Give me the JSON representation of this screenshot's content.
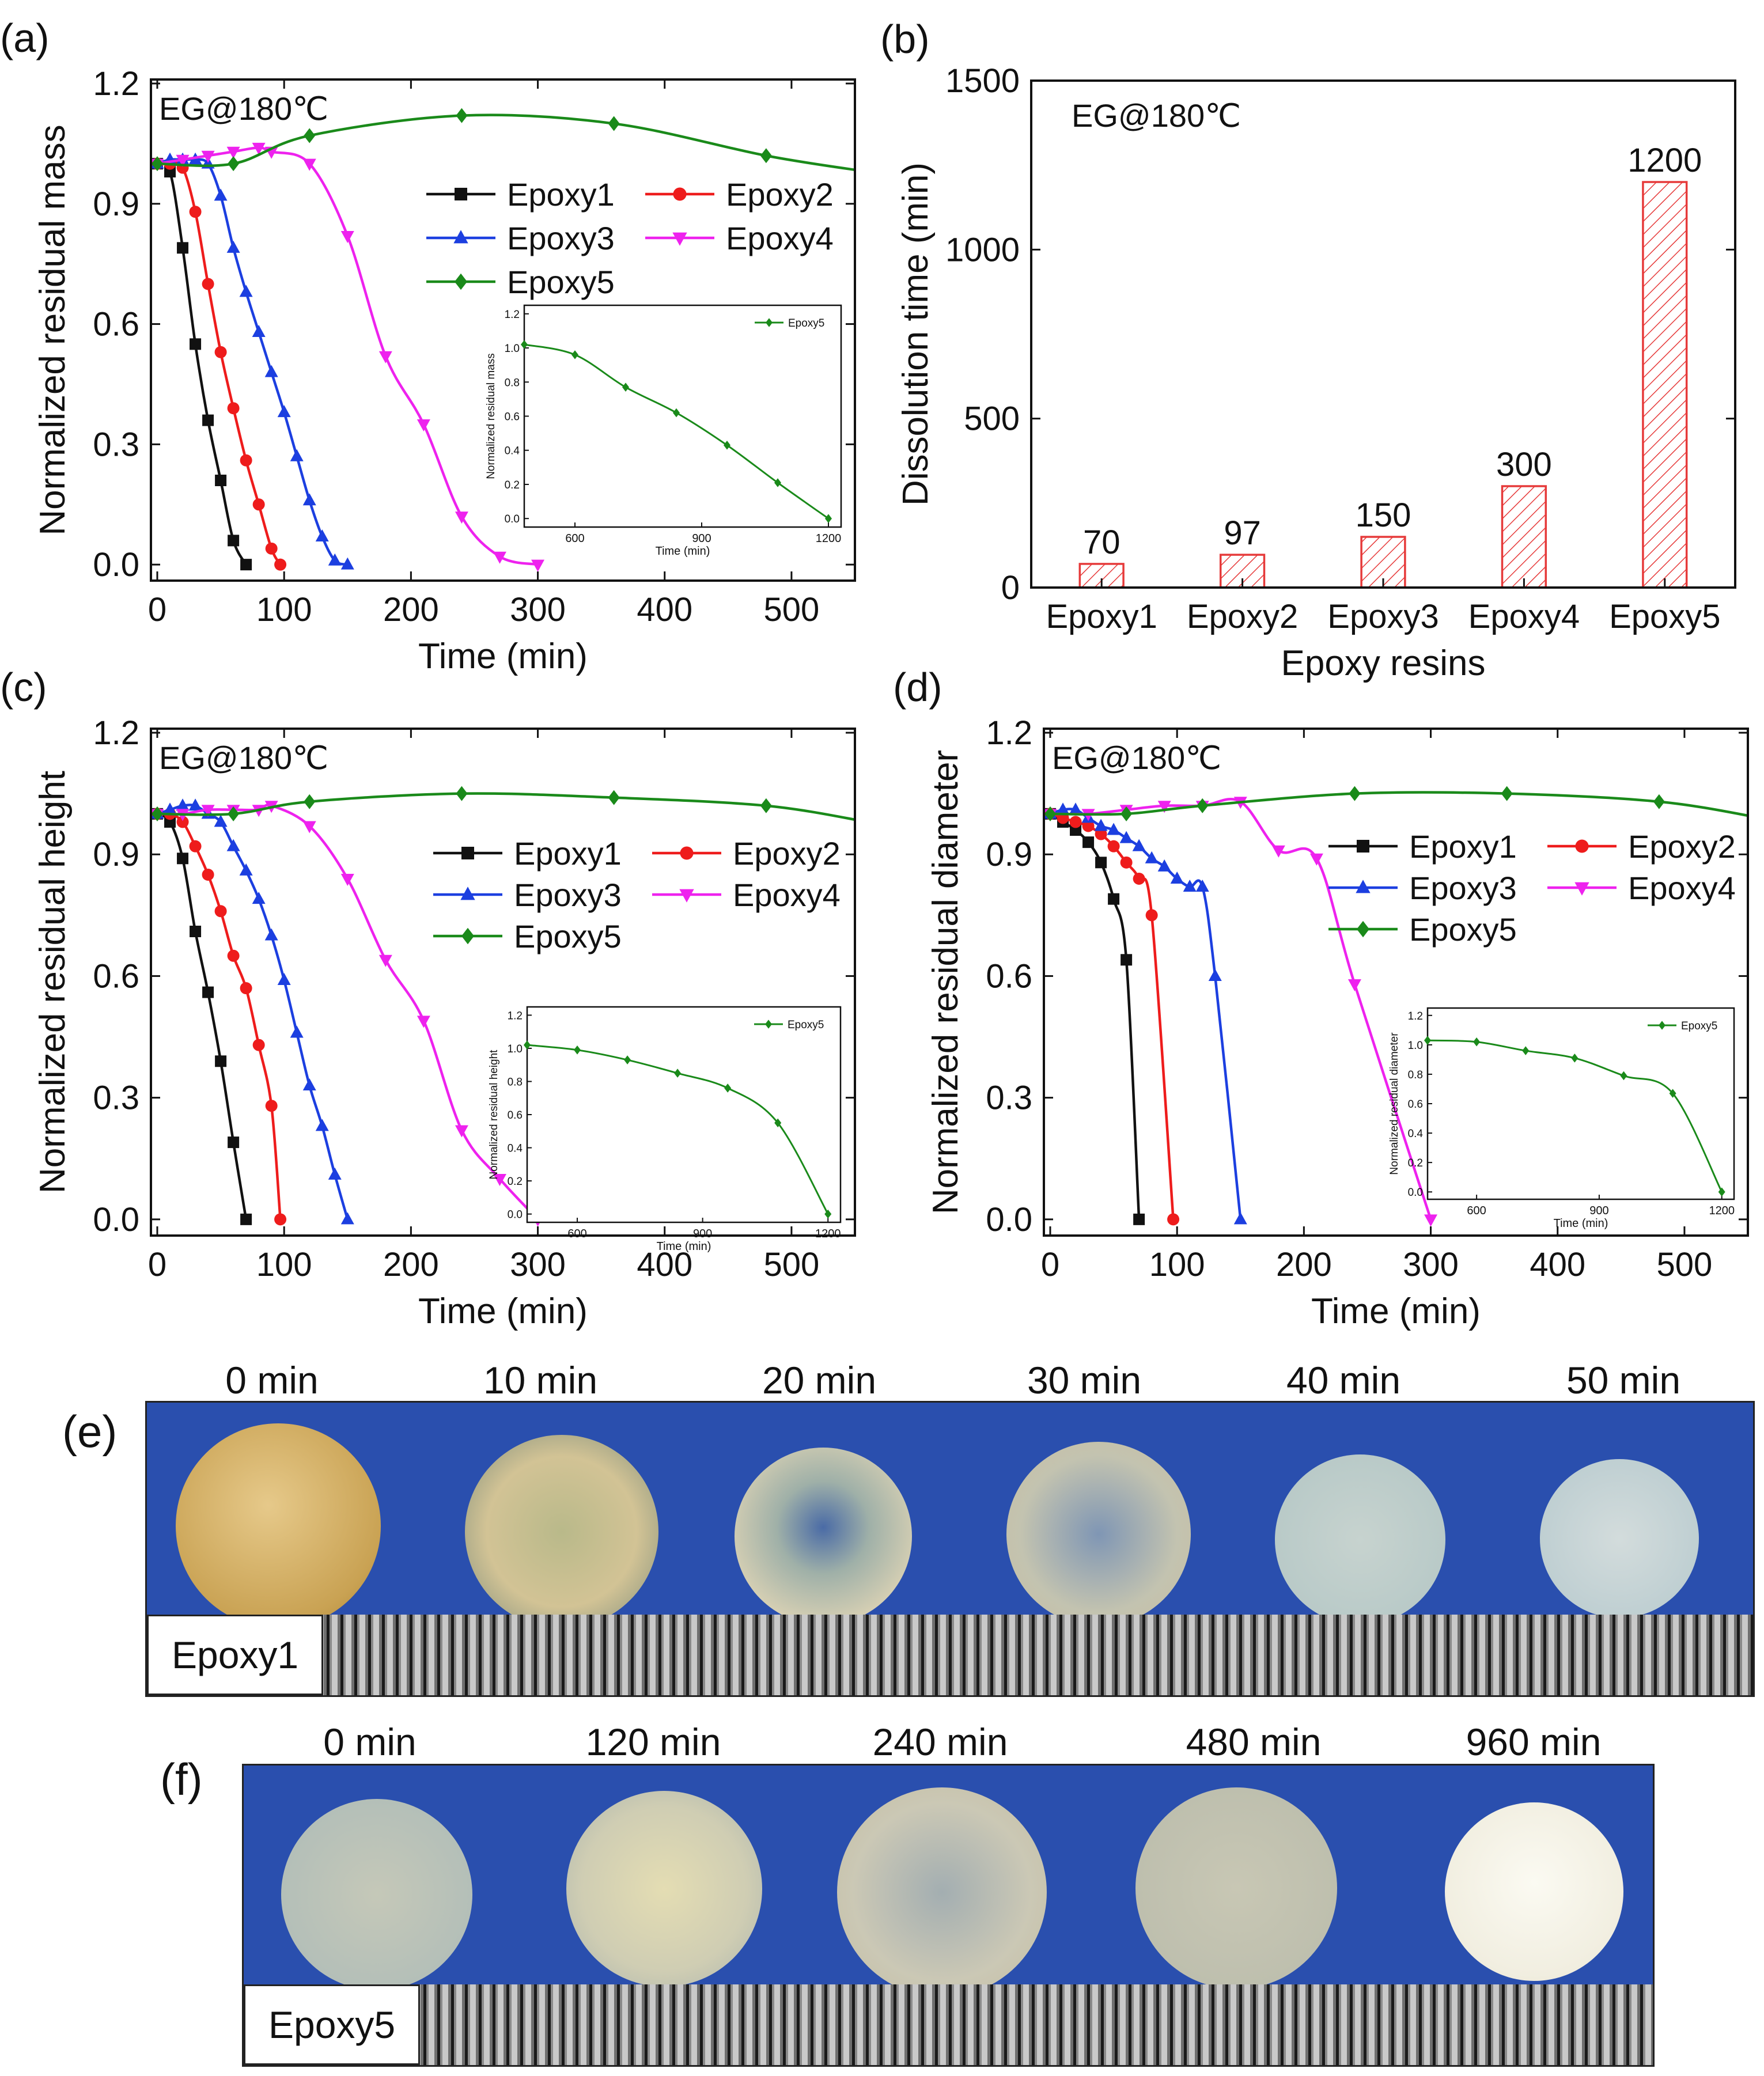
{
  "colors": {
    "Epoxy1": "#111111",
    "Epoxy2": "#ee1c1c",
    "Epoxy3": "#1c3fe0",
    "Epoxy4": "#ee22ee",
    "Epoxy5": "#1a8a1a",
    "bar_edge": "#e63a3a",
    "photo_bg": "#2a4fae"
  },
  "chart_data": [
    {
      "id": "a",
      "panel_label": "(a)",
      "type": "line",
      "title": "",
      "annotation": "EG@180℃",
      "xlabel": "Time (min)",
      "ylabel": "Normalized residual mass",
      "xlim": [
        -5,
        550
      ],
      "ylim": [
        -0.04,
        1.21
      ],
      "xticks": [
        0,
        100,
        200,
        300,
        400,
        500
      ],
      "yticks": [
        0.0,
        0.3,
        0.6,
        0.9,
        1.2
      ],
      "ytick_labels": [
        "0.0",
        "0.3",
        "0.6",
        "0.9",
        "1.2"
      ],
      "legend": [
        "Epoxy1",
        "Epoxy2",
        "Epoxy3",
        "Epoxy4",
        "Epoxy5"
      ],
      "series": [
        {
          "name": "Epoxy1",
          "marker": "square",
          "x": [
            0,
            10,
            20,
            30,
            40,
            50,
            60,
            70
          ],
          "y": [
            1.0,
            0.98,
            0.79,
            0.55,
            0.36,
            0.21,
            0.06,
            0.0
          ]
        },
        {
          "name": "Epoxy2",
          "marker": "circle",
          "x": [
            0,
            10,
            20,
            30,
            40,
            50,
            60,
            70,
            80,
            90,
            97
          ],
          "y": [
            1.0,
            1.0,
            0.99,
            0.88,
            0.7,
            0.53,
            0.39,
            0.26,
            0.15,
            0.04,
            0.0
          ]
        },
        {
          "name": "Epoxy3",
          "marker": "triangle-up",
          "x": [
            0,
            10,
            20,
            30,
            40,
            50,
            60,
            70,
            80,
            90,
            100,
            110,
            120,
            130,
            140,
            150
          ],
          "y": [
            1.0,
            1.01,
            1.01,
            1.01,
            1.0,
            0.92,
            0.79,
            0.68,
            0.58,
            0.48,
            0.38,
            0.27,
            0.16,
            0.07,
            0.01,
            0.0
          ]
        },
        {
          "name": "Epoxy4",
          "marker": "triangle-down",
          "x": [
            0,
            20,
            40,
            60,
            80,
            90,
            120,
            150,
            180,
            210,
            240,
            270,
            300
          ],
          "y": [
            1.0,
            1.01,
            1.02,
            1.03,
            1.04,
            1.03,
            1.0,
            0.82,
            0.52,
            0.35,
            0.12,
            0.02,
            0.0
          ]
        },
        {
          "name": "Epoxy5",
          "marker": "diamond",
          "x": [
            0,
            60,
            120,
            240,
            360,
            480
          ],
          "y": [
            1.0,
            1.0,
            1.07,
            1.12,
            1.1,
            1.02
          ]
        }
      ],
      "inset": {
        "xlabel": "Time (min)",
        "ylabel": "Normalized residual mass",
        "xlim": [
          480,
          1230
        ],
        "ylim": [
          -0.05,
          1.25
        ],
        "xticks": [
          600,
          900,
          1200
        ],
        "yticks": [
          0.0,
          0.2,
          0.4,
          0.6,
          0.8,
          1.0,
          1.2
        ],
        "ytick_labels": [
          "0.0",
          "0.2",
          "0.4",
          "0.6",
          "0.8",
          "1.0",
          "1.2"
        ],
        "legend": [
          "Epoxy5"
        ],
        "series": [
          {
            "name": "Epoxy5",
            "marker": "diamond",
            "x": [
              480,
              600,
              720,
              840,
              960,
              1080,
              1200
            ],
            "y": [
              1.02,
              0.96,
              0.77,
              0.62,
              0.43,
              0.21,
              0.0
            ]
          }
        ]
      }
    },
    {
      "id": "b",
      "panel_label": "(b)",
      "type": "bar",
      "title": "",
      "annotation": "EG@180℃",
      "xlabel": "Epoxy resins",
      "ylabel": "Dissolution time (min)",
      "categories": [
        "Epoxy1",
        "Epoxy2",
        "Epoxy3",
        "Epoxy4",
        "Epoxy5"
      ],
      "values": [
        70,
        97,
        150,
        300,
        1200
      ],
      "value_labels": [
        "70",
        "97",
        "150",
        "300",
        "1200"
      ],
      "ylim": [
        0,
        1500
      ],
      "yticks": [
        0,
        500,
        1000,
        1500
      ],
      "ytick_labels": [
        "0",
        "500",
        "1000",
        "1500"
      ]
    },
    {
      "id": "c",
      "panel_label": "(c)",
      "type": "line",
      "title": "",
      "annotation": "EG@180℃",
      "xlabel": "Time (min)",
      "ylabel": "Normalized residual height",
      "xlim": [
        -5,
        550
      ],
      "ylim": [
        -0.04,
        1.21
      ],
      "xticks": [
        0,
        100,
        200,
        300,
        400,
        500
      ],
      "yticks": [
        0.0,
        0.3,
        0.6,
        0.9,
        1.2
      ],
      "ytick_labels": [
        "0.0",
        "0.3",
        "0.6",
        "0.9",
        "1.2"
      ],
      "legend": [
        "Epoxy1",
        "Epoxy2",
        "Epoxy3",
        "Epoxy4",
        "Epoxy5"
      ],
      "series": [
        {
          "name": "Epoxy1",
          "marker": "square",
          "x": [
            0,
            10,
            20,
            30,
            40,
            50,
            60,
            70
          ],
          "y": [
            1.0,
            0.98,
            0.89,
            0.71,
            0.56,
            0.39,
            0.19,
            0.0
          ]
        },
        {
          "name": "Epoxy2",
          "marker": "circle",
          "x": [
            0,
            10,
            20,
            30,
            40,
            50,
            60,
            70,
            80,
            90,
            97
          ],
          "y": [
            1.0,
            1.0,
            0.98,
            0.92,
            0.85,
            0.76,
            0.65,
            0.57,
            0.43,
            0.28,
            0.0
          ]
        },
        {
          "name": "Epoxy3",
          "marker": "triangle-up",
          "x": [
            0,
            10,
            20,
            30,
            40,
            50,
            60,
            70,
            80,
            90,
            100,
            110,
            120,
            130,
            140,
            150
          ],
          "y": [
            1.0,
            1.01,
            1.02,
            1.02,
            1.0,
            0.98,
            0.92,
            0.86,
            0.79,
            0.7,
            0.59,
            0.46,
            0.33,
            0.23,
            0.11,
            0.0
          ]
        },
        {
          "name": "Epoxy4",
          "marker": "triangle-down",
          "x": [
            0,
            20,
            40,
            60,
            80,
            90,
            120,
            150,
            180,
            210,
            240,
            270,
            300
          ],
          "y": [
            1.0,
            1.0,
            1.01,
            1.01,
            1.01,
            1.02,
            0.97,
            0.84,
            0.64,
            0.49,
            0.22,
            0.1,
            0.0
          ]
        },
        {
          "name": "Epoxy5",
          "marker": "diamond",
          "x": [
            0,
            60,
            120,
            240,
            360,
            480
          ],
          "y": [
            1.0,
            1.0,
            1.03,
            1.05,
            1.04,
            1.02
          ]
        }
      ],
      "inset": {
        "xlabel": "Time (min)",
        "ylabel": "Normalized residual height",
        "xlim": [
          480,
          1230
        ],
        "ylim": [
          -0.05,
          1.25
        ],
        "xticks": [
          600,
          900,
          1200
        ],
        "yticks": [
          0.0,
          0.2,
          0.4,
          0.6,
          0.8,
          1.0,
          1.2
        ],
        "ytick_labels": [
          "0.0",
          "0.2",
          "0.4",
          "0.6",
          "0.8",
          "1.0",
          "1.2"
        ],
        "legend": [
          "Epoxy5"
        ],
        "series": [
          {
            "name": "Epoxy5",
            "marker": "diamond",
            "x": [
              480,
              600,
              720,
              840,
              960,
              1080,
              1200
            ],
            "y": [
              1.02,
              0.99,
              0.93,
              0.85,
              0.76,
              0.55,
              0.0
            ]
          }
        ]
      }
    },
    {
      "id": "d",
      "panel_label": "(d)",
      "type": "line",
      "title": "",
      "annotation": "EG@180℃",
      "xlabel": "Time (min)",
      "ylabel": "Normalized residual diameter",
      "xlim": [
        -5,
        550
      ],
      "ylim": [
        -0.04,
        1.21
      ],
      "xticks": [
        0,
        100,
        200,
        300,
        400,
        500
      ],
      "yticks": [
        0.0,
        0.3,
        0.6,
        0.9,
        1.2
      ],
      "ytick_labels": [
        "0.0",
        "0.3",
        "0.6",
        "0.9",
        "1.2"
      ],
      "legend": [
        "Epoxy1",
        "Epoxy2",
        "Epoxy3",
        "Epoxy4",
        "Epoxy5"
      ],
      "series": [
        {
          "name": "Epoxy1",
          "marker": "square",
          "x": [
            0,
            10,
            20,
            30,
            40,
            50,
            60,
            70
          ],
          "y": [
            1.0,
            0.98,
            0.96,
            0.93,
            0.88,
            0.79,
            0.64,
            0.0
          ]
        },
        {
          "name": "Epoxy2",
          "marker": "circle",
          "x": [
            0,
            10,
            20,
            30,
            40,
            50,
            60,
            70,
            80,
            97
          ],
          "y": [
            1.0,
            0.99,
            0.98,
            0.97,
            0.95,
            0.92,
            0.88,
            0.84,
            0.75,
            0.0
          ]
        },
        {
          "name": "Epoxy3",
          "marker": "triangle-up",
          "x": [
            0,
            10,
            20,
            30,
            40,
            50,
            60,
            70,
            80,
            90,
            100,
            110,
            120,
            130,
            150
          ],
          "y": [
            1.0,
            1.01,
            1.01,
            0.99,
            0.97,
            0.96,
            0.94,
            0.92,
            0.89,
            0.87,
            0.84,
            0.82,
            0.82,
            0.6,
            0.0
          ]
        },
        {
          "name": "Epoxy4",
          "marker": "triangle-down",
          "x": [
            0,
            30,
            60,
            90,
            120,
            150,
            180,
            210,
            240,
            300
          ],
          "y": [
            1.0,
            1.0,
            1.01,
            1.02,
            1.02,
            1.03,
            0.91,
            0.89,
            0.58,
            0.0
          ]
        },
        {
          "name": "Epoxy5",
          "marker": "diamond",
          "x": [
            0,
            60,
            120,
            240,
            360,
            480
          ],
          "y": [
            1.0,
            1.0,
            1.02,
            1.05,
            1.05,
            1.03
          ]
        }
      ],
      "inset": {
        "xlabel": "Time (min)",
        "ylabel": "Normalized residual diameter",
        "xlim": [
          480,
          1230
        ],
        "ylim": [
          -0.05,
          1.25
        ],
        "xticks": [
          600,
          900,
          1200
        ],
        "yticks": [
          0.0,
          0.2,
          0.4,
          0.6,
          0.8,
          1.0,
          1.2
        ],
        "ytick_labels": [
          "0.0",
          "0.2",
          "0.4",
          "0.6",
          "0.8",
          "1.0",
          "1.2"
        ],
        "legend": [
          "Epoxy5"
        ],
        "series": [
          {
            "name": "Epoxy5",
            "marker": "diamond",
            "x": [
              480,
              600,
              720,
              840,
              960,
              1080,
              1200
            ],
            "y": [
              1.03,
              1.02,
              0.96,
              0.91,
              0.79,
              0.67,
              0.0
            ]
          }
        ]
      }
    }
  ],
  "photos": {
    "e": {
      "panel_label": "(e)",
      "sample_label": "Epoxy1",
      "times": [
        "0 min",
        "10 min",
        "20 min",
        "30 min",
        "40 min",
        "50 min"
      ]
    },
    "f": {
      "panel_label": "(f)",
      "sample_label": "Epoxy5",
      "times": [
        "0 min",
        "120 min",
        "240 min",
        "480 min",
        "960 min"
      ]
    }
  }
}
